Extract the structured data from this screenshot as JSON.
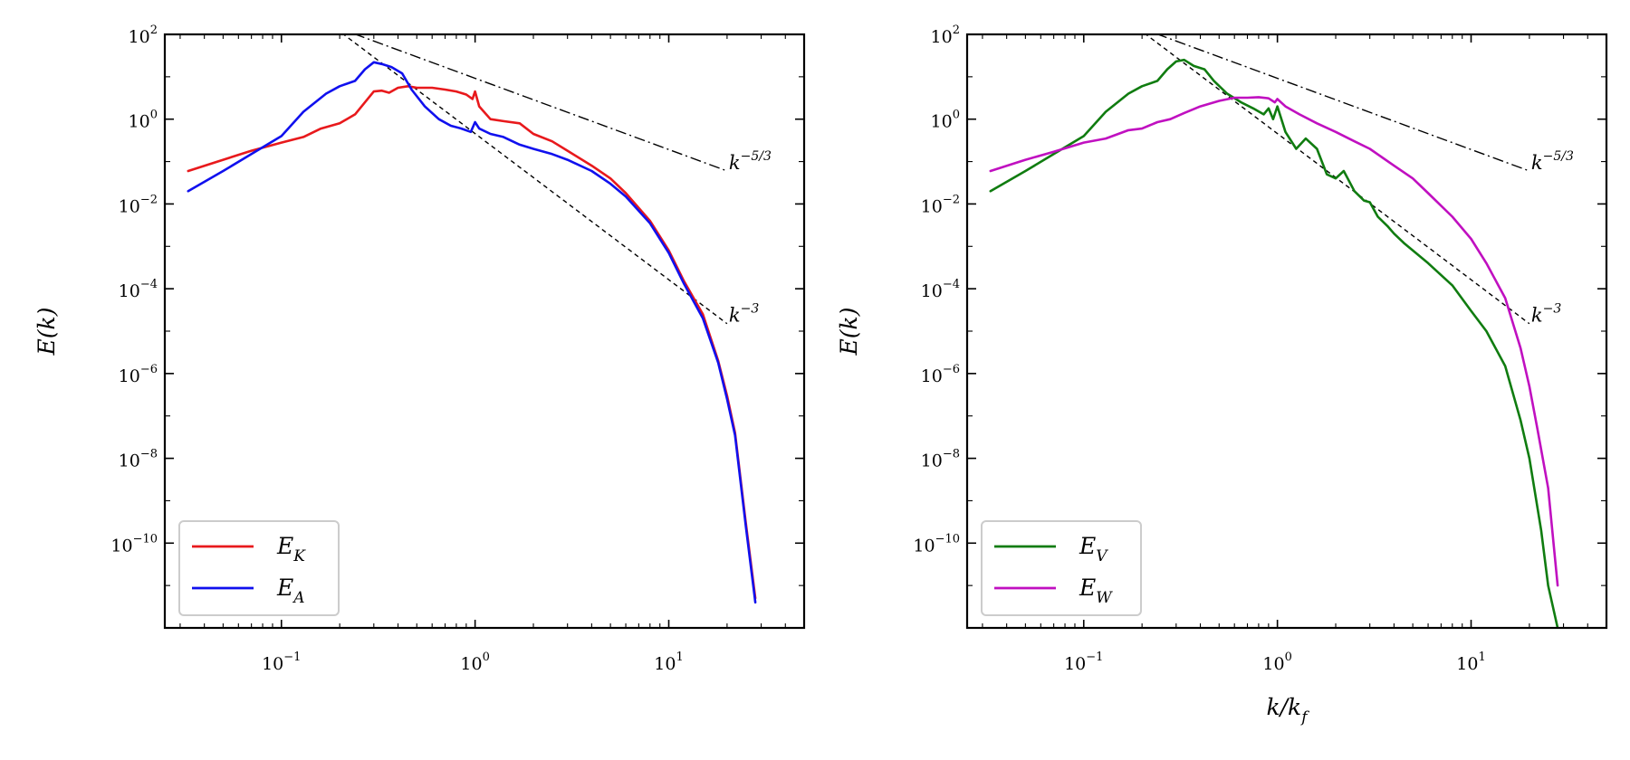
{
  "chart_data": [
    {
      "type": "line",
      "scale": "log-log",
      "title": "",
      "xlabel": "",
      "ylabel": "E(k)",
      "xlim": [
        0.025,
        50
      ],
      "ylim": [
        1e-12,
        100
      ],
      "xticks": [
        {
          "value": 0.1,
          "label": "10",
          "exp": "−1"
        },
        {
          "value": 1,
          "label": "10",
          "exp": "0"
        },
        {
          "value": 10,
          "label": "10",
          "exp": "1"
        }
      ],
      "yticks": [
        {
          "value": 100,
          "label": "10",
          "exp": "2"
        },
        {
          "value": 1,
          "label": "10",
          "exp": "0"
        },
        {
          "value": 0.01,
          "label": "10",
          "exp": "−2"
        },
        {
          "value": 0.0001,
          "label": "10",
          "exp": "−4"
        },
        {
          "value": 1e-06,
          "label": "10",
          "exp": "−6"
        },
        {
          "value": 1e-08,
          "label": "10",
          "exp": "−8"
        },
        {
          "value": 1e-10,
          "label": "10",
          "exp": "−10"
        }
      ],
      "legend_position": "lower-left",
      "reference_lines": [
        {
          "name": "k^-5/3",
          "label": "k",
          "exp": "−5/3",
          "style": "dashdot",
          "x": [
            0.19,
            20
          ],
          "y": [
            150,
            0.06
          ]
        },
        {
          "name": "k^-3",
          "label": "k",
          "exp": "−3",
          "style": "dashed",
          "x": [
            0.19,
            20
          ],
          "y": [
            140,
            1.5e-05
          ]
        }
      ],
      "series": [
        {
          "name": "E_K",
          "label": "E",
          "sub": "K",
          "color": "#e8191c",
          "x": [
            0.033,
            0.05,
            0.07,
            0.1,
            0.13,
            0.16,
            0.2,
            0.24,
            0.27,
            0.3,
            0.33,
            0.36,
            0.4,
            0.45,
            0.5,
            0.6,
            0.7,
            0.8,
            0.9,
            0.97,
            1.0,
            1.05,
            1.2,
            1.4,
            1.7,
            2.0,
            2.5,
            3.0,
            4.0,
            5.0,
            6.0,
            8.0,
            10.0,
            12.0,
            15.0,
            18.0,
            20.0,
            22.0,
            25.0,
            28.0
          ],
          "y": [
            0.06,
            0.11,
            0.18,
            0.28,
            0.38,
            0.6,
            0.8,
            1.3,
            2.5,
            4.5,
            4.7,
            4.2,
            5.5,
            6.0,
            5.5,
            5.5,
            5.0,
            4.5,
            3.8,
            3.0,
            4.5,
            2.0,
            1.0,
            0.9,
            0.8,
            0.45,
            0.3,
            0.18,
            0.08,
            0.04,
            0.018,
            0.004,
            0.0008,
            0.00015,
            2.5e-05,
            2e-06,
            3e-07,
            4e-08,
            3e-10,
            5e-12
          ]
        },
        {
          "name": "E_A",
          "label": "E",
          "sub": "A",
          "color": "#1010ee",
          "x": [
            0.033,
            0.05,
            0.07,
            0.1,
            0.13,
            0.17,
            0.2,
            0.24,
            0.27,
            0.3,
            0.33,
            0.37,
            0.42,
            0.47,
            0.55,
            0.65,
            0.75,
            0.85,
            0.95,
            1.0,
            1.05,
            1.2,
            1.4,
            1.7,
            2.0,
            2.5,
            3.0,
            4.0,
            5.0,
            6.0,
            8.0,
            10.0,
            12.0,
            15.0,
            18.0,
            20.0,
            22.0,
            25.0,
            28.0
          ],
          "y": [
            0.02,
            0.06,
            0.15,
            0.4,
            1.5,
            4.0,
            6.0,
            8.0,
            15.0,
            22.0,
            20.0,
            17.0,
            12.0,
            5.0,
            2.0,
            1.0,
            0.7,
            0.6,
            0.5,
            0.85,
            0.6,
            0.45,
            0.38,
            0.25,
            0.2,
            0.15,
            0.11,
            0.06,
            0.03,
            0.015,
            0.0035,
            0.0007,
            0.00013,
            2e-05,
            1.8e-06,
            2.5e-07,
            3.5e-08,
            2.5e-10,
            4e-12
          ]
        }
      ]
    },
    {
      "type": "line",
      "scale": "log-log",
      "title": "",
      "xlabel": "k/k_f",
      "ylabel": "E(k)",
      "xlim": [
        0.025,
        50
      ],
      "ylim": [
        1e-12,
        100
      ],
      "xticks": [
        {
          "value": 0.1,
          "label": "10",
          "exp": "−1"
        },
        {
          "value": 1,
          "label": "10",
          "exp": "0"
        },
        {
          "value": 10,
          "label": "10",
          "exp": "1"
        }
      ],
      "yticks": [
        {
          "value": 100,
          "label": "10",
          "exp": "2"
        },
        {
          "value": 1,
          "label": "10",
          "exp": "0"
        },
        {
          "value": 0.01,
          "label": "10",
          "exp": "−2"
        },
        {
          "value": 0.0001,
          "label": "10",
          "exp": "−4"
        },
        {
          "value": 1e-06,
          "label": "10",
          "exp": "−6"
        },
        {
          "value": 1e-08,
          "label": "10",
          "exp": "−8"
        },
        {
          "value": 1e-10,
          "label": "10",
          "exp": "−10"
        }
      ],
      "legend_position": "lower-left",
      "reference_lines": [
        {
          "name": "k^-5/3",
          "label": "k",
          "exp": "−5/3",
          "style": "dashdot",
          "x": [
            0.19,
            20
          ],
          "y": [
            150,
            0.06
          ]
        },
        {
          "name": "k^-3",
          "label": "k",
          "exp": "−3",
          "style": "dashed",
          "x": [
            0.19,
            20
          ],
          "y": [
            140,
            1.5e-05
          ]
        }
      ],
      "series": [
        {
          "name": "E_V",
          "label": "E",
          "sub": "V",
          "color": "#107c10",
          "x": [
            0.033,
            0.05,
            0.07,
            0.1,
            0.13,
            0.17,
            0.2,
            0.24,
            0.27,
            0.3,
            0.33,
            0.37,
            0.42,
            0.47,
            0.55,
            0.65,
            0.75,
            0.85,
            0.9,
            0.95,
            1.0,
            1.1,
            1.25,
            1.4,
            1.6,
            1.8,
            2.0,
            2.2,
            2.5,
            2.8,
            3.0,
            3.3,
            3.7,
            4.0,
            4.5,
            5.0,
            6.0,
            8.0,
            10.0,
            12.0,
            15.0,
            18.0,
            20.0,
            23.0,
            25.0,
            28.0
          ],
          "y": [
            0.02,
            0.06,
            0.15,
            0.4,
            1.5,
            4.0,
            6.0,
            8.0,
            15.0,
            23.0,
            25.0,
            18.0,
            15.0,
            8.0,
            4.0,
            2.5,
            1.8,
            1.3,
            1.8,
            1.0,
            2.0,
            0.5,
            0.2,
            0.35,
            0.2,
            0.05,
            0.04,
            0.06,
            0.02,
            0.012,
            0.011,
            0.005,
            0.003,
            0.002,
            0.0012,
            0.0008,
            0.0004,
            0.00012,
            3e-05,
            1e-05,
            1.5e-06,
            8e-08,
            1e-08,
            2e-10,
            1e-11,
            1e-12
          ]
        },
        {
          "name": "E_W",
          "label": "E",
          "sub": "W",
          "color": "#c010c0",
          "x": [
            0.033,
            0.05,
            0.07,
            0.1,
            0.13,
            0.17,
            0.2,
            0.24,
            0.28,
            0.33,
            0.4,
            0.5,
            0.6,
            0.7,
            0.8,
            0.9,
            0.97,
            1.0,
            1.1,
            1.3,
            1.6,
            2.0,
            2.5,
            3.0,
            4.0,
            5.0,
            6.0,
            8.0,
            10.0,
            12.0,
            15.0,
            18.0,
            20.0,
            22.0,
            25.0,
            28.0
          ],
          "y": [
            0.06,
            0.11,
            0.17,
            0.28,
            0.35,
            0.55,
            0.6,
            0.85,
            1.0,
            1.4,
            2.0,
            2.7,
            3.2,
            3.2,
            3.3,
            3.1,
            2.5,
            3.0,
            2.0,
            1.3,
            0.8,
            0.5,
            0.3,
            0.2,
            0.08,
            0.04,
            0.018,
            0.005,
            0.0015,
            0.0004,
            6e-05,
            4e-06,
            5e-07,
            5e-08,
            2e-09,
            1e-11
          ]
        }
      ]
    }
  ]
}
